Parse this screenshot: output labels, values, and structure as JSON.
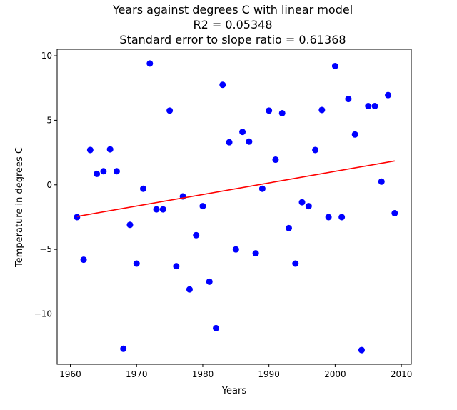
{
  "chart_data": {
    "type": "scatter",
    "title_lines": [
      "Years against degrees C with linear model",
      "R2 = 0.05348",
      "Standard error to slope ratio = 0.61368"
    ],
    "xlabel": "Years",
    "ylabel": "Temperature in degrees C",
    "xlim": [
      1958,
      2011.5
    ],
    "ylim": [
      -13.9,
      10.5
    ],
    "xticks": [
      1960,
      1970,
      1980,
      1990,
      2000,
      2010
    ],
    "yticks": [
      -10,
      -5,
      0,
      5,
      10
    ],
    "ytick_labels": [
      "−10",
      "−5",
      "0",
      "5",
      "10"
    ],
    "grid": false,
    "series": [
      {
        "type": "scatter",
        "color": "#0000ff",
        "x": [
          1961,
          1962,
          1963,
          1964,
          1965,
          1966,
          1967,
          1968,
          1969,
          1970,
          1971,
          1972,
          1973,
          1974,
          1975,
          1976,
          1977,
          1978,
          1979,
          1980,
          1981,
          1982,
          1983,
          1984,
          1985,
          1986,
          1987,
          1988,
          1989,
          1990,
          1991,
          1992,
          1993,
          1994,
          1995,
          1996,
          1997,
          1998,
          1999,
          2000,
          2001,
          2002,
          2003,
          2004,
          2005,
          2006,
          2007,
          2008,
          2009
        ],
        "y": [
          -2.5,
          -5.8,
          2.7,
          0.85,
          1.05,
          2.75,
          1.05,
          -12.7,
          -3.1,
          -6.1,
          -0.3,
          9.4,
          -1.9,
          -1.9,
          5.75,
          -6.3,
          -0.9,
          -8.1,
          -3.9,
          -1.65,
          -7.5,
          -11.1,
          7.75,
          3.3,
          -5.0,
          4.1,
          3.35,
          -5.3,
          -0.3,
          5.75,
          1.95,
          5.55,
          -3.35,
          -6.1,
          -1.35,
          -1.65,
          2.7,
          5.8,
          -2.5,
          9.2,
          -2.5,
          6.65,
          3.9,
          -12.8,
          6.1,
          6.1,
          0.25,
          6.95,
          -2.2
        ]
      },
      {
        "type": "line",
        "color": "#ff0000",
        "x": [
          1961,
          2009
        ],
        "y": [
          -2.45,
          1.85
        ]
      }
    ]
  }
}
